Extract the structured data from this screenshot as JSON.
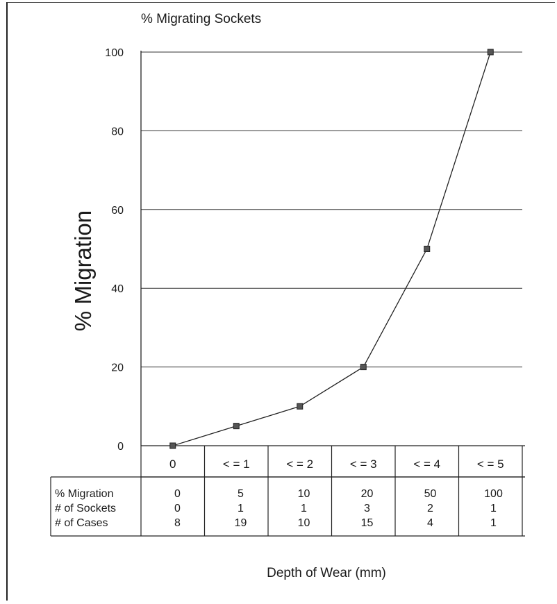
{
  "chart_data": {
    "type": "line",
    "title": "% Migrating Sockets",
    "ylabel": "% Migration",
    "xlabel": "Depth of Wear (mm)",
    "categories": [
      "0",
      "< = 1",
      "< = 2",
      "< = 3",
      "< = 4",
      "< = 5"
    ],
    "y_ticks": [
      "100",
      "80",
      "60",
      "40",
      "20",
      "0"
    ],
    "ylim": [
      0,
      100
    ],
    "grid": true,
    "series": [
      {
        "values": [
          0,
          5,
          10,
          20,
          50,
          100
        ]
      }
    ],
    "table": {
      "rows": [
        {
          "label": "% Migration",
          "values": [
            "0",
            "5",
            "10",
            "20",
            "50",
            "100"
          ]
        },
        {
          "label": "# of Sockets",
          "values": [
            "0",
            "1",
            "1",
            "3",
            "2",
            "1"
          ]
        },
        {
          "label": "# of Cases",
          "values": [
            "8",
            "19",
            "10",
            "15",
            "4",
            "1"
          ]
        }
      ]
    }
  }
}
